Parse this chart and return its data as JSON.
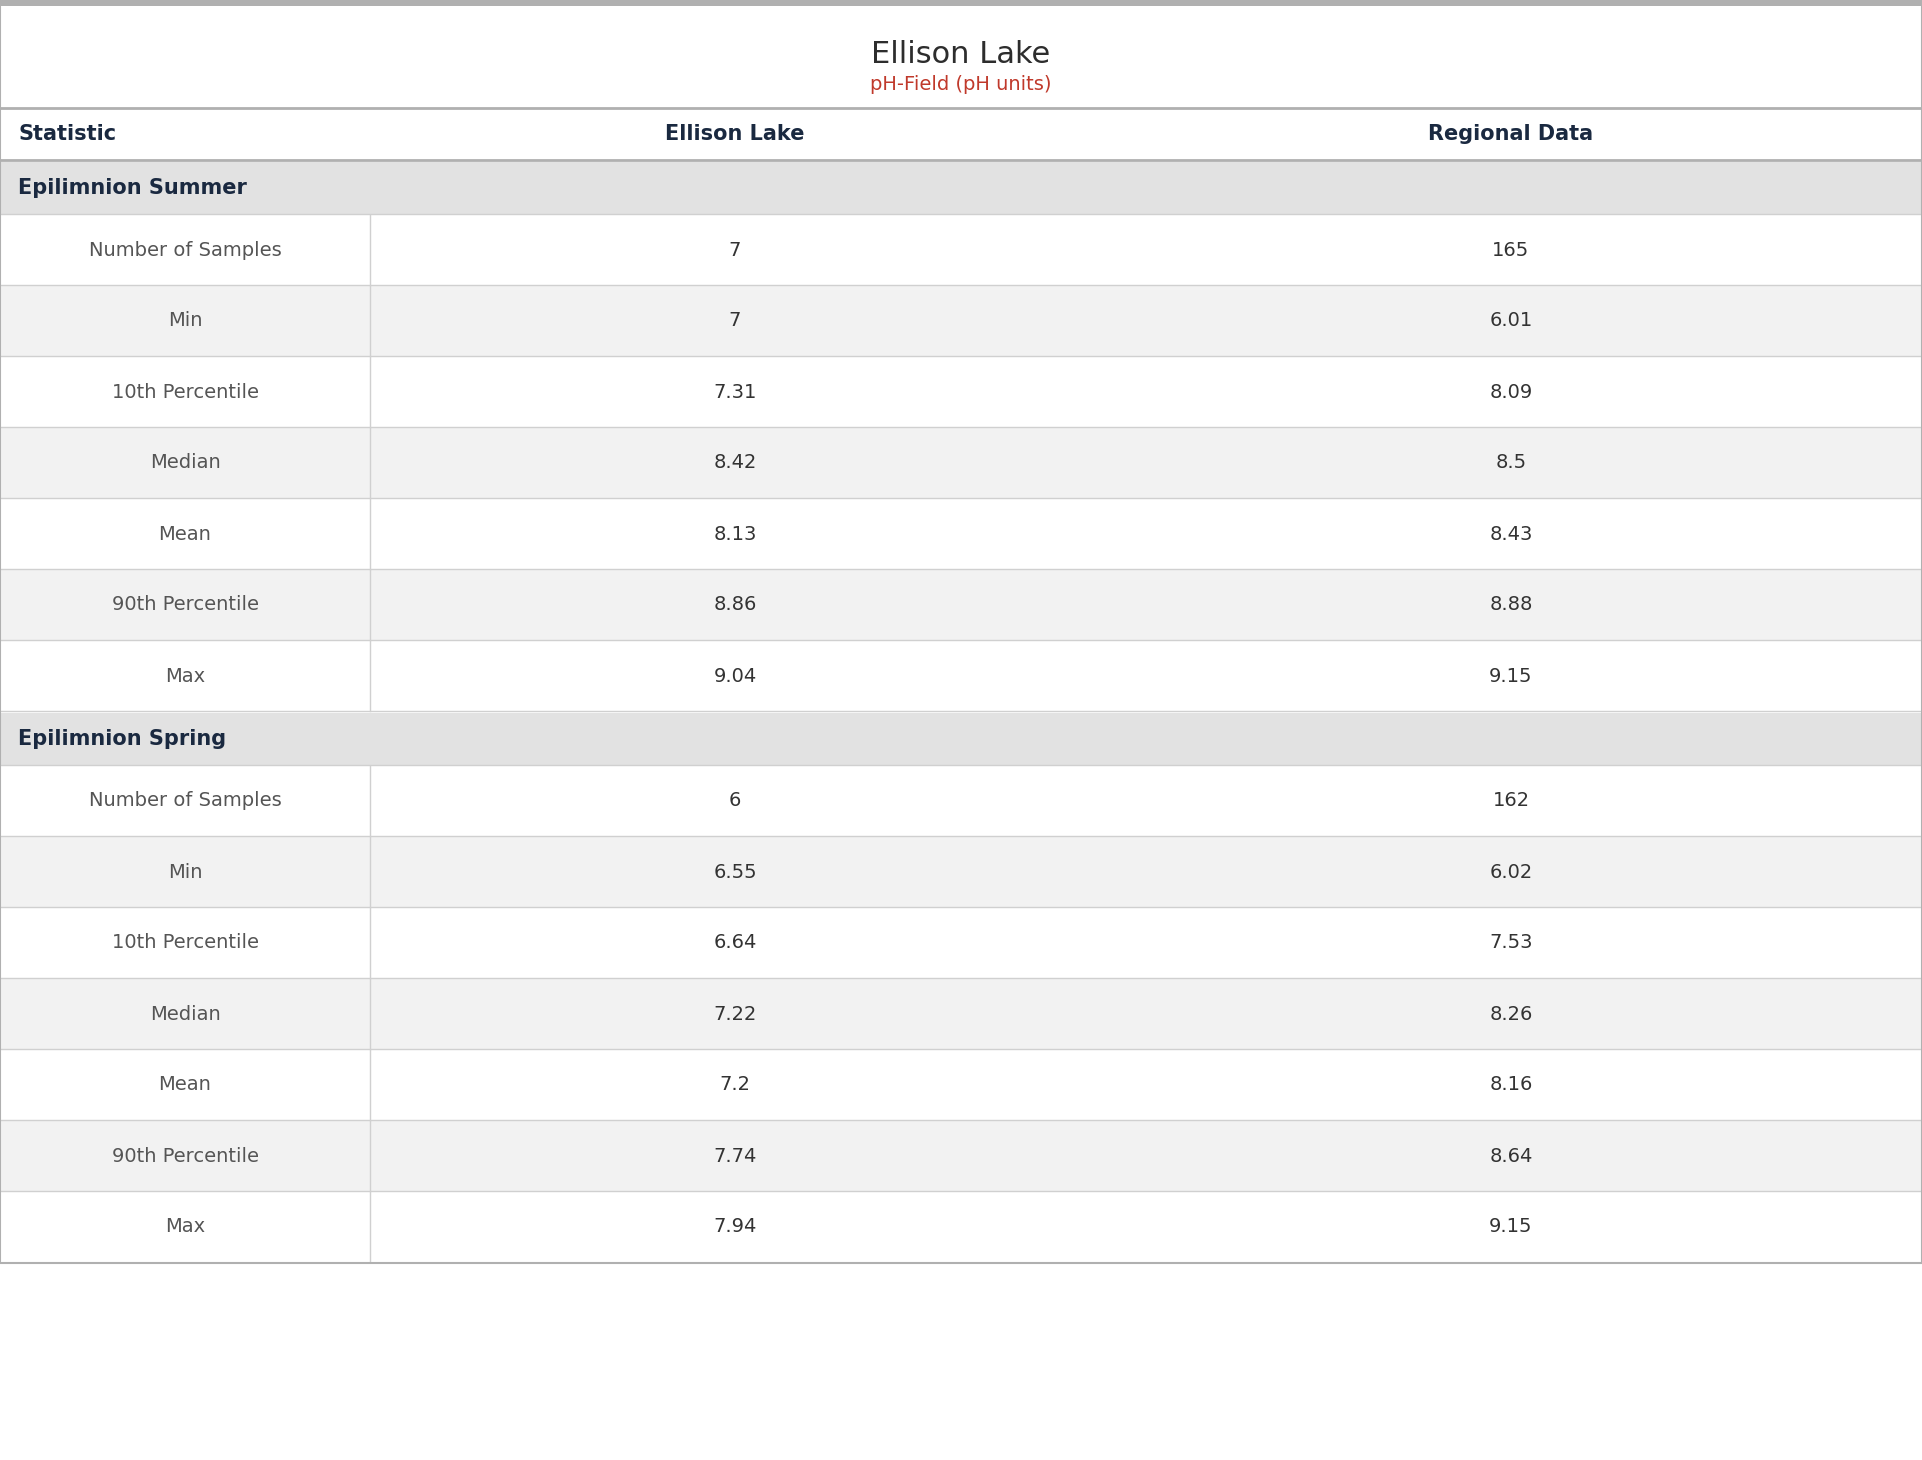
{
  "title": "Ellison Lake",
  "subtitle": "pH-Field (pH units)",
  "title_color": "#2d2d2d",
  "subtitle_color": "#c0392b",
  "col_headers": [
    "Statistic",
    "Ellison Lake",
    "Regional Data"
  ],
  "col_header_color": "#1a2940",
  "section_header_bg": "#e2e2e2",
  "section_header_text_color": "#1a2940",
  "statistic_text_color": "#555555",
  "data_text_color": "#333333",
  "row_bg_white": "#ffffff",
  "row_bg_light": "#f2f2f2",
  "row_separator_color": "#d0d0d0",
  "header_line_color": "#b0b0b0",
  "top_bar_color": "#b0b0b0",
  "figure_bg": "#ffffff",
  "summer_rows": [
    [
      "Number of Samples",
      "7",
      "165"
    ],
    [
      "Min",
      "7",
      "6.01"
    ],
    [
      "10th Percentile",
      "7.31",
      "8.09"
    ],
    [
      "Median",
      "8.42",
      "8.5"
    ],
    [
      "Mean",
      "8.13",
      "8.43"
    ],
    [
      "90th Percentile",
      "8.86",
      "8.88"
    ],
    [
      "Max",
      "9.04",
      "9.15"
    ]
  ],
  "spring_rows": [
    [
      "Number of Samples",
      "6",
      "162"
    ],
    [
      "Min",
      "6.55",
      "6.02"
    ],
    [
      "10th Percentile",
      "6.64",
      "7.53"
    ],
    [
      "Median",
      "7.22",
      "8.26"
    ],
    [
      "Mean",
      "7.2",
      "8.16"
    ],
    [
      "90th Percentile",
      "7.74",
      "8.64"
    ],
    [
      "Max",
      "7.94",
      "9.15"
    ]
  ]
}
